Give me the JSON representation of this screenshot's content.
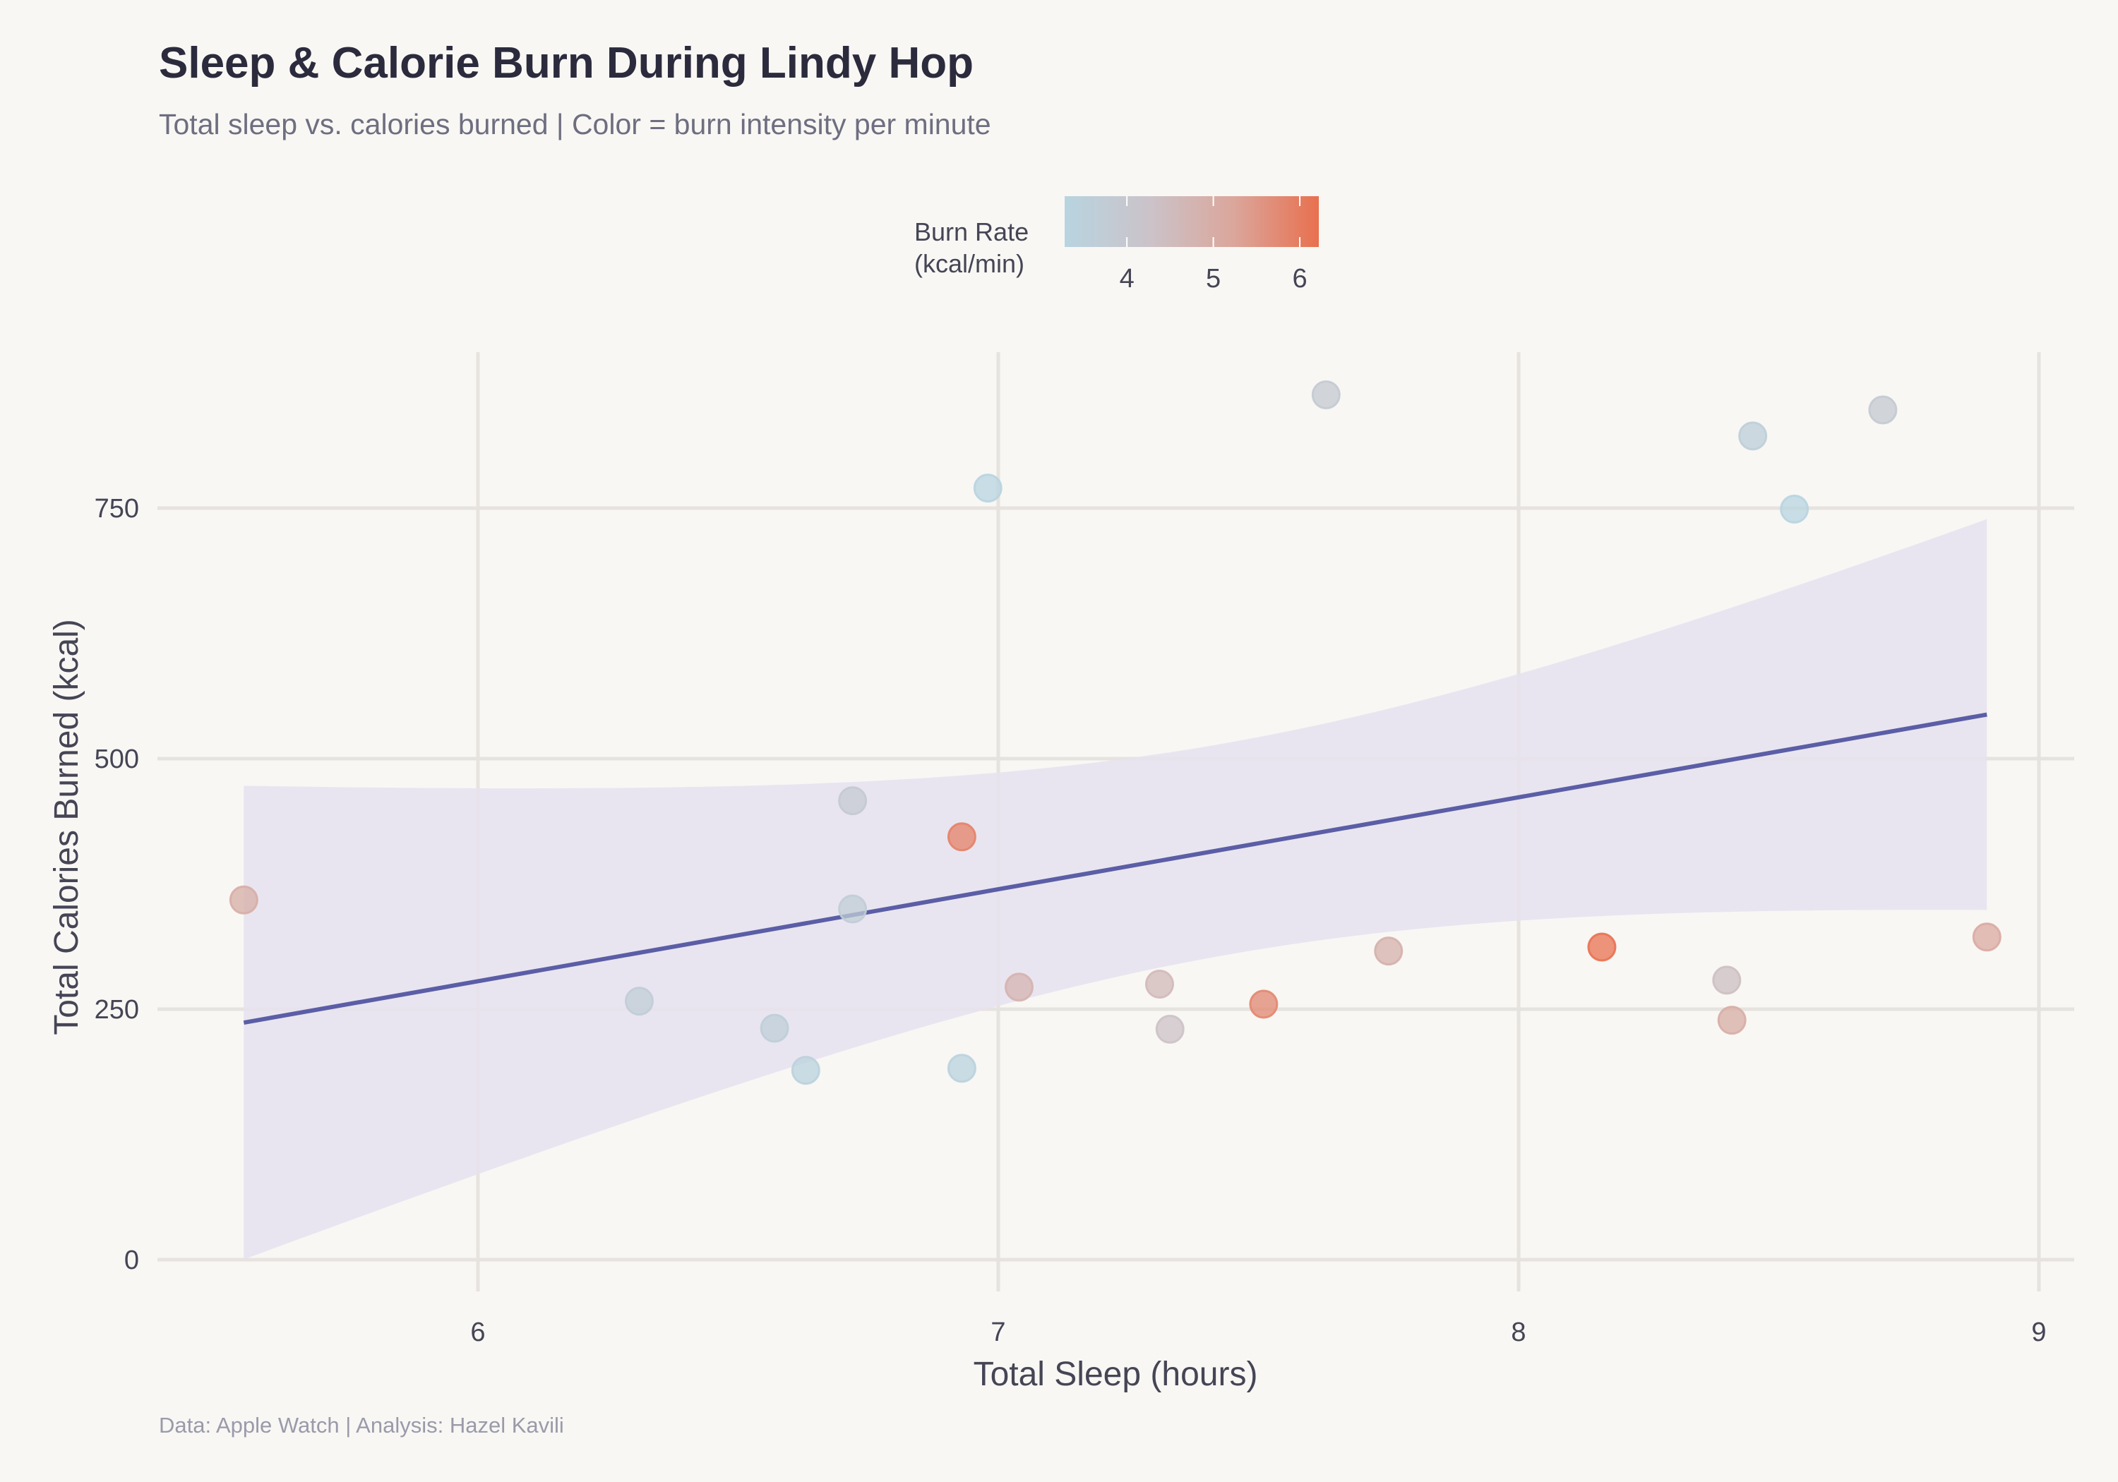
{
  "chart_data": {
    "type": "scatter",
    "title": "Sleep & Calorie Burn During Lindy Hop",
    "subtitle": "Total sleep vs. calories burned | Color = burn intensity per minute",
    "caption": "Data: Apple Watch | Analysis: Hazel Kavili",
    "xlabel": "Total Sleep (hours)",
    "ylabel": "Total Calories Burned (kcal)",
    "xlim": [
      5.24,
      9.07
    ],
    "ylim": [
      -40,
      900
    ],
    "xticks": [
      6,
      7,
      8,
      9
    ],
    "yticks": [
      0,
      250,
      500,
      750
    ],
    "grid": true,
    "legend": {
      "title_line1": "Burn Rate",
      "title_line2": "(kcal/min)",
      "placement": "top-center",
      "range": [
        3.28,
        6.22
      ],
      "ticks": [
        4,
        5,
        6
      ],
      "colors": [
        "#b8d4e0",
        "#cbc3c9",
        "#dba69b",
        "#e8704f"
      ]
    },
    "points": [
      {
        "sleep": 5.55,
        "calories": 359,
        "burn_rate": 5.0
      },
      {
        "sleep": 6.31,
        "calories": 258,
        "burn_rate": 3.7
      },
      {
        "sleep": 6.57,
        "calories": 231,
        "burn_rate": 3.6
      },
      {
        "sleep": 6.63,
        "calories": 189,
        "burn_rate": 3.4
      },
      {
        "sleep": 6.72,
        "calories": 458,
        "burn_rate": 3.9
      },
      {
        "sleep": 6.72,
        "calories": 350,
        "burn_rate": 3.7
      },
      {
        "sleep": 6.93,
        "calories": 422,
        "burn_rate": 5.9
      },
      {
        "sleep": 6.93,
        "calories": 191,
        "burn_rate": 3.4
      },
      {
        "sleep": 6.98,
        "calories": 770,
        "burn_rate": 3.3
      },
      {
        "sleep": 7.04,
        "calories": 272,
        "burn_rate": 4.8
      },
      {
        "sleep": 7.31,
        "calories": 275,
        "burn_rate": 4.6
      },
      {
        "sleep": 7.33,
        "calories": 230,
        "burn_rate": 4.3
      },
      {
        "sleep": 7.51,
        "calories": 255,
        "burn_rate": 5.8
      },
      {
        "sleep": 7.63,
        "calories": 863,
        "burn_rate": 3.9
      },
      {
        "sleep": 7.75,
        "calories": 308,
        "burn_rate": 4.9
      },
      {
        "sleep": 8.16,
        "calories": 312,
        "burn_rate": 6.2
      },
      {
        "sleep": 8.4,
        "calories": 279,
        "burn_rate": 4.4
      },
      {
        "sleep": 8.41,
        "calories": 239,
        "burn_rate": 5.0
      },
      {
        "sleep": 8.45,
        "calories": 822,
        "burn_rate": 3.6
      },
      {
        "sleep": 8.53,
        "calories": 749,
        "burn_rate": 3.3
      },
      {
        "sleep": 8.7,
        "calories": 848,
        "burn_rate": 3.9
      },
      {
        "sleep": 8.9,
        "calories": 322,
        "burn_rate": 5.1
      }
    ],
    "trend": {
      "method": "linear",
      "x_range": [
        5.55,
        8.9
      ],
      "start": 236.6,
      "end": 544.0,
      "ci_x_center": 7.437,
      "ci_min_halfwidth": 105.7,
      "ci_curvature": 12546,
      "line_color": "#5b5ea6",
      "band_color": "#e6e2ee"
    }
  }
}
